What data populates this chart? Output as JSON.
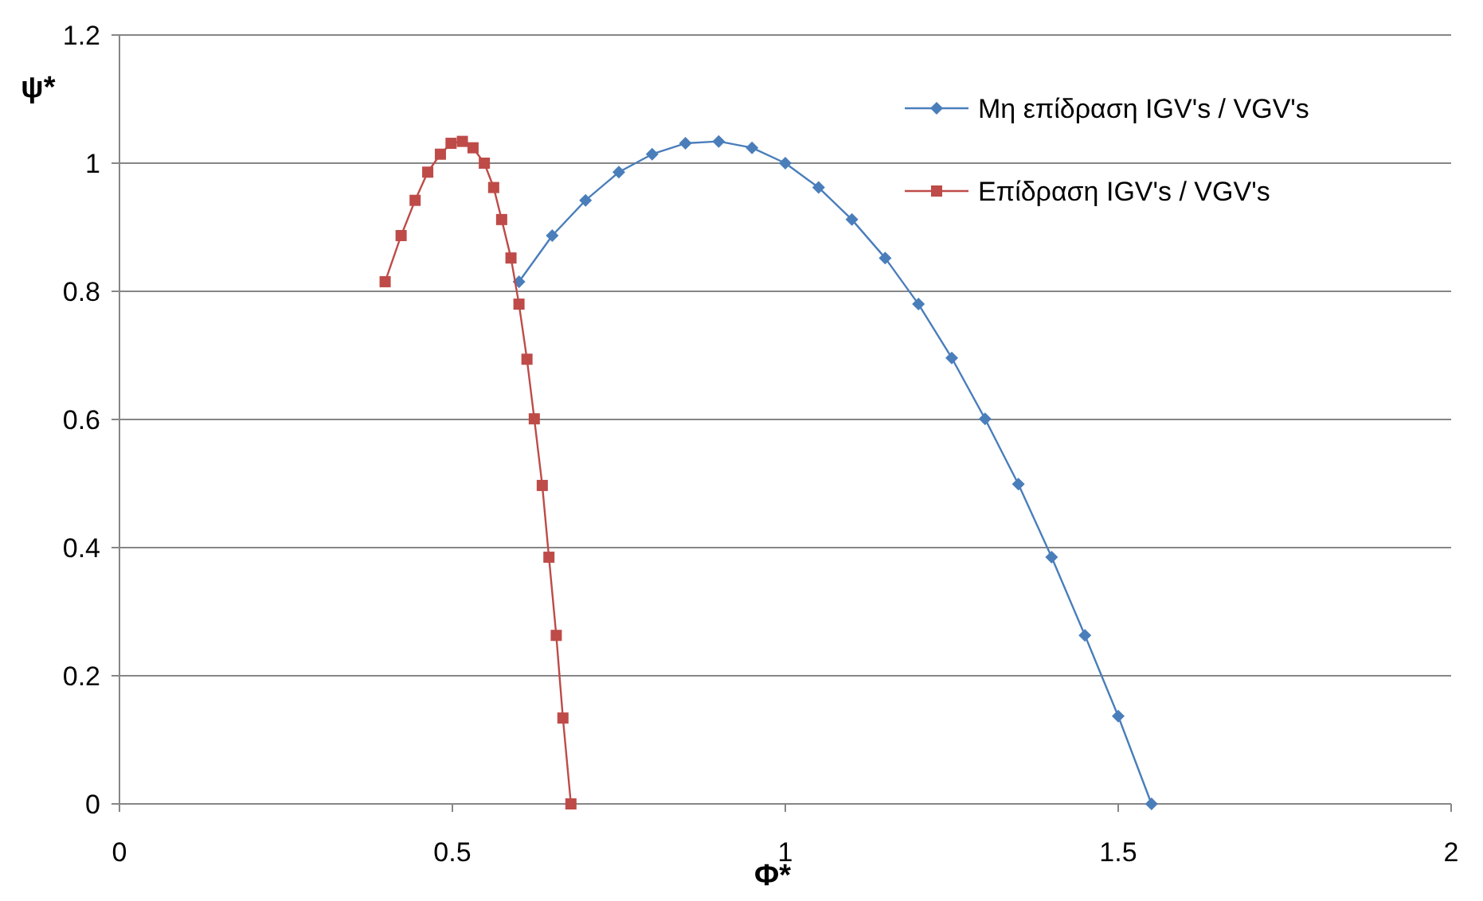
{
  "chart_data": {
    "type": "line",
    "xlabel": "Φ*",
    "ylabel": "ψ*",
    "xlim": [
      0,
      2
    ],
    "xticks": [
      0,
      0.5,
      1,
      1.5,
      2
    ],
    "ylim": [
      0,
      1.2
    ],
    "yticks": [
      0,
      0.2,
      0.4,
      0.6,
      0.8,
      1,
      1.2
    ],
    "grid": "y",
    "legend": "top right",
    "series": [
      {
        "name": "Μη επίδραση IGV's / VGV's",
        "color": "#4a7ebb",
        "marker": "diamond",
        "x": [
          0.6,
          0.65,
          0.7,
          0.75,
          0.8,
          0.85,
          0.9,
          0.95,
          1.0,
          1.05,
          1.1,
          1.15,
          1.2,
          1.25,
          1.3,
          1.35,
          1.4,
          1.45,
          1.5,
          1.55
        ],
        "values": [
          0.815,
          0.887,
          0.942,
          0.986,
          1.014,
          1.031,
          1.034,
          1.024,
          1.0,
          0.962,
          0.912,
          0.852,
          0.78,
          0.696,
          0.601,
          0.499,
          0.385,
          0.263,
          0.137,
          0
        ]
      },
      {
        "name": "Επίδραση IGV's / VGV's",
        "color": "#be4b48",
        "marker": "square",
        "x": [
          0.399,
          0.423,
          0.444,
          0.463,
          0.482,
          0.498,
          0.515,
          0.531,
          0.548,
          0.562,
          0.574,
          0.588,
          0.6,
          0.612,
          0.623,
          0.635,
          0.645,
          0.656,
          0.666,
          0.678
        ],
        "values": [
          0.815,
          0.887,
          0.942,
          0.986,
          1.014,
          1.031,
          1.034,
          1.024,
          1.0,
          0.962,
          0.912,
          0.852,
          0.78,
          0.694,
          0.601,
          0.497,
          0.385,
          0.263,
          0.134,
          0
        ]
      }
    ]
  }
}
